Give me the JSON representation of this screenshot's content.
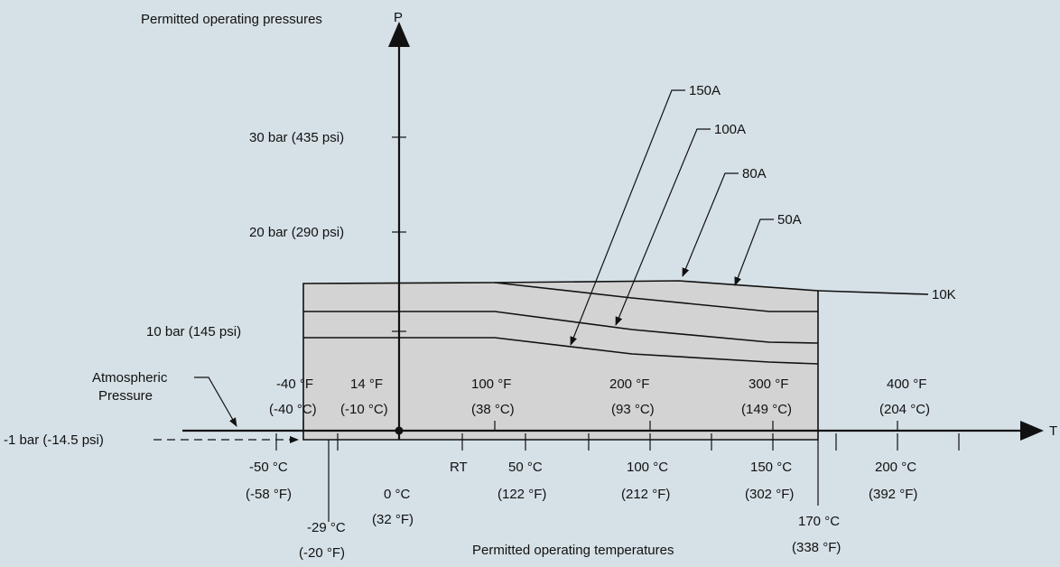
{
  "title_p": "Permitted operating pressures",
  "title_t": "Permitted operating temperatures",
  "axis_p": "P",
  "axis_t": "T",
  "pressure_ticks": [
    {
      "label": "30 bar (435 psi)"
    },
    {
      "label": "20 bar (290 psi)"
    },
    {
      "label": "10 bar (145 psi)"
    },
    {
      "label": "-1 bar (-14.5 psi)"
    }
  ],
  "atmospheric_label": [
    "Atmospheric",
    "Pressure"
  ],
  "top_temps": [
    {
      "f": "-40 °F",
      "c": "(-40 °C)"
    },
    {
      "f": "14 °F",
      "c": "(-10 °C)"
    },
    {
      "f": "100 °F",
      "c": "(38 °C)"
    },
    {
      "f": "200 °F",
      "c": "(93 °C)"
    },
    {
      "f": "300 °F",
      "c": "(149 °C)"
    },
    {
      "f": "400 °F",
      "c": "(204 °C)"
    }
  ],
  "bottom_temps": [
    {
      "c": "-50 °C",
      "f": "(-58 °F)"
    },
    {
      "c": "-29 °C",
      "f": "(-20 °F)"
    },
    {
      "c": "0 °C",
      "f": "(32 °F)"
    },
    {
      "c": "RT",
      "f": ""
    },
    {
      "c": "50 °C",
      "f": "(122 °F)"
    },
    {
      "c": "100 °C",
      "f": "(212 °F)"
    },
    {
      "c": "150 °C",
      "f": "(302 °F)"
    },
    {
      "c": "170 °C",
      "f": "(338 °F)"
    },
    {
      "c": "200 °C",
      "f": "(392 °F)"
    }
  ],
  "curves": [
    {
      "name": "150A"
    },
    {
      "name": "100A"
    },
    {
      "name": "80A"
    },
    {
      "name": "50A"
    },
    {
      "name": "10K"
    }
  ],
  "colors": {
    "background": "#d6e1e7",
    "envelope_fill": "#d3d3d3",
    "ink": "#111111"
  }
}
